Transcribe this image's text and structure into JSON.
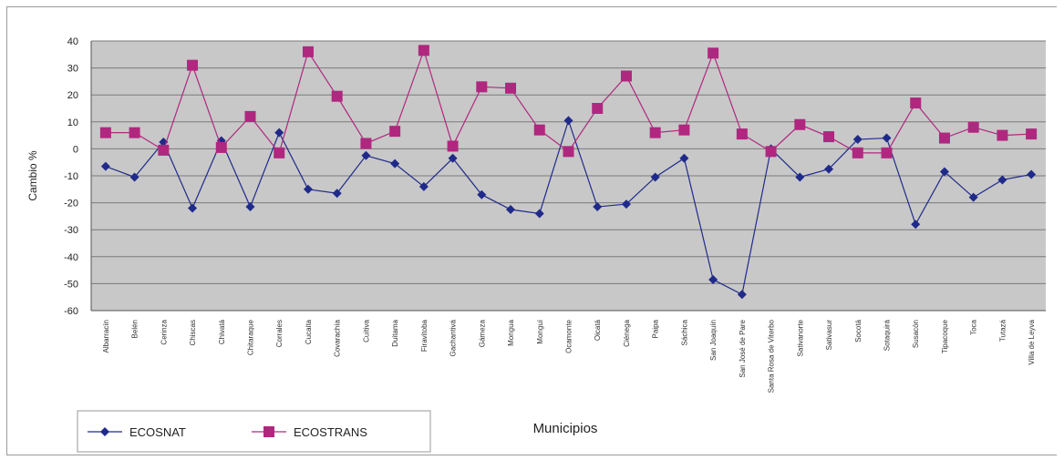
{
  "chart_data": {
    "type": "line",
    "xlabel": "Municipios",
    "ylabel": "Cambio %",
    "ylim": [
      -60,
      40
    ],
    "yticks": [
      40,
      30,
      20,
      10,
      0,
      -10,
      -20,
      -30,
      -40,
      -50,
      -60
    ],
    "grid": true,
    "legend_position": "bottom-left",
    "categories": [
      "Albarracín",
      "Belén",
      "Cerinza",
      "Chiscas",
      "Chivatá",
      "Chitaraque",
      "Corrales",
      "Cucaita",
      "Covarachía",
      "Cuítiva",
      "Duitama",
      "Firavitoba",
      "Gachantivá",
      "Gámeza",
      "Mongua",
      "Monguí",
      "Ocamonte",
      "Oicatá",
      "Ciénega",
      "Paipa",
      "Sáchica",
      "San Joaquín",
      "San José de Pare",
      "Santa Rosa de Viterbo",
      "Sativanorte",
      "Sativasur",
      "Socotá",
      "Sotaquirá",
      "Susacón",
      "Tipacoque",
      "Toca",
      "Tutazá",
      "Villa de Leyva"
    ],
    "series": [
      {
        "name": "ECOSNAT",
        "color": "#1f2a8a",
        "marker": "diamond",
        "values": [
          -6.5,
          -10.5,
          2.5,
          -22,
          3,
          -21.5,
          6,
          -15,
          -16.5,
          -2.5,
          -5.5,
          -14,
          -3.5,
          -17,
          -22.5,
          -24,
          10.5,
          -21.5,
          -20.5,
          -10.5,
          -3.5,
          -48.5,
          -54,
          0,
          -10.5,
          -7.5,
          3.5,
          4,
          -28,
          -8.5,
          -18,
          -11.5,
          -9.5
        ]
      },
      {
        "name": "ECOSTRANS",
        "color": "#b0277f",
        "marker": "square",
        "values": [
          6,
          6,
          -0.5,
          31,
          0.5,
          12,
          -1.5,
          36,
          19.5,
          2,
          6.5,
          36.5,
          1,
          23,
          22.5,
          7,
          -1,
          15,
          27,
          6,
          7,
          35.5,
          5.5,
          -1,
          9,
          4.5,
          -1.5,
          -1.5,
          17,
          4,
          8,
          5,
          5.5
        ]
      }
    ]
  }
}
